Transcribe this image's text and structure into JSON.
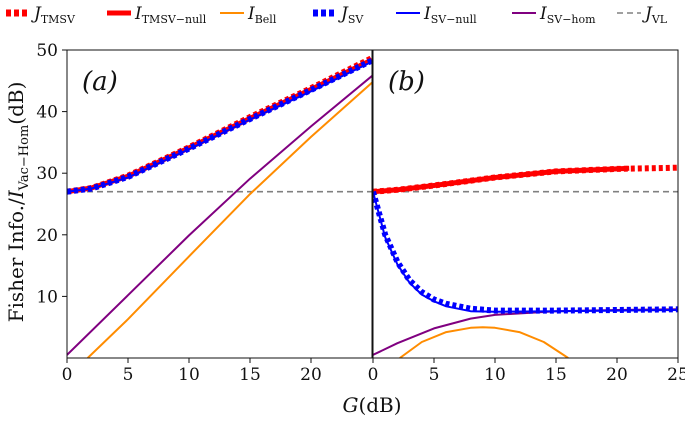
{
  "chart_data": {
    "type": "line",
    "xlabel": "G(dB)",
    "ylabel": "Fisher Info./I_Vac−Hom(dB)",
    "ylabel_parts": {
      "pre": "Fisher Info./",
      "sym": "I",
      "sub": "Vac−Hom",
      "post": "(dB)"
    },
    "x_ticks": [
      0,
      5,
      10,
      15,
      20,
      25
    ],
    "y_ticks": [
      10,
      20,
      30,
      40,
      50
    ],
    "xlim": [
      0,
      25
    ],
    "ylim": [
      0,
      50
    ],
    "legend": [
      {
        "key": "J_TMSV",
        "symbol": "J",
        "sub": "TMSV",
        "color": "#ff0000",
        "style": "dotted-thick"
      },
      {
        "key": "I_TMSV-null",
        "symbol": "I",
        "sub": "TMSV−null",
        "color": "#ff0000",
        "style": "solid-thick"
      },
      {
        "key": "I_Bell",
        "symbol": "I",
        "sub": "Bell",
        "color": "#ff8c00",
        "style": "solid"
      },
      {
        "key": "J_SV",
        "symbol": "J",
        "sub": "SV",
        "color": "#0000ff",
        "style": "dotted-thick"
      },
      {
        "key": "I_SV-null",
        "symbol": "I",
        "sub": "SV−null",
        "color": "#0000ff",
        "style": "solid"
      },
      {
        "key": "I_SV-hom",
        "symbol": "I",
        "sub": "SV−hom",
        "color": "#800080",
        "style": "solid"
      },
      {
        "key": "J_VL",
        "symbol": "J",
        "sub": "VL",
        "color": "#808080",
        "style": "dashed"
      }
    ],
    "panels": [
      {
        "label": "(a)",
        "series": [
          {
            "key": "J_TMSV",
            "x": [
              0,
              2,
              5,
              10,
              15,
              20,
              25
            ],
            "y": [
              27,
              27.6,
              29.6,
              34.2,
              39.1,
              43.8,
              48.7
            ]
          },
          {
            "key": "I_TMSV-null",
            "x": [
              0,
              2,
              5,
              10,
              15,
              20,
              25
            ],
            "y": [
              27,
              27.6,
              29.5,
              34.1,
              38.9,
              43.6,
              48.4
            ]
          },
          {
            "key": "J_SV",
            "x": [
              0,
              2,
              5,
              10,
              15,
              20,
              25
            ],
            "y": [
              27,
              27.5,
              29.4,
              34.0,
              38.8,
              43.5,
              48.3
            ]
          },
          {
            "key": "I_SV-null",
            "x": [
              0,
              2,
              5,
              10,
              15,
              20,
              25
            ],
            "y": [
              27,
              27.5,
              29.3,
              33.9,
              38.7,
              43.3,
              48.1
            ]
          },
          {
            "key": "I_SV-hom",
            "x": [
              0,
              5,
              10,
              15,
              20,
              25
            ],
            "y": [
              0.5,
              10.2,
              19.9,
              29.1,
              37.6,
              45.8
            ]
          },
          {
            "key": "I_Bell",
            "x": [
              1.7,
              5,
              10,
              15,
              20,
              25
            ],
            "y": [
              0,
              6.3,
              16.5,
              26.6,
              35.9,
              44.7
            ]
          },
          {
            "key": "J_VL",
            "x": [
              0,
              25
            ],
            "y": [
              27,
              27
            ]
          }
        ]
      },
      {
        "label": "(b)",
        "series": [
          {
            "key": "J_TMSV",
            "x": [
              0,
              2,
              5,
              10,
              15,
              20,
              25
            ],
            "y": [
              27,
              27.3,
              28.0,
              29.3,
              30.3,
              30.7,
              30.9
            ]
          },
          {
            "key": "I_TMSV-null",
            "x": [
              0,
              2,
              5,
              10,
              15,
              20,
              21
            ],
            "y": [
              27,
              27.3,
              28.0,
              29.3,
              30.3,
              30.7,
              30.8
            ]
          },
          {
            "key": "J_SV",
            "x": [
              0,
              1,
              2,
              3,
              4,
              5,
              6,
              8,
              10,
              15,
              20,
              25
            ],
            "y": [
              27,
              20,
              15.6,
              12.6,
              10.7,
              9.5,
              8.8,
              8.0,
              7.7,
              7.7,
              7.8,
              7.9
            ]
          },
          {
            "key": "I_SV-null",
            "x": [
              0,
              1,
              2,
              3,
              4,
              5,
              6,
              8,
              10,
              15,
              20,
              25
            ],
            "y": [
              27,
              19.6,
              15.2,
              12.2,
              10.3,
              9.2,
              8.4,
              7.6,
              7.5,
              7.6,
              7.7,
              7.8
            ]
          },
          {
            "key": "I_SV-hom",
            "x": [
              0,
              2,
              5,
              8,
              10,
              15,
              20,
              25
            ],
            "y": [
              0.5,
              2.4,
              4.8,
              6.4,
              7.0,
              7.6,
              7.8,
              7.9
            ]
          },
          {
            "key": "I_Bell",
            "x": [
              2.2,
              4,
              6,
              8,
              9,
              10,
              12,
              14,
              16
            ],
            "y": [
              0,
              2.6,
              4.2,
              4.9,
              5.0,
              4.9,
              4.2,
              2.6,
              0
            ]
          },
          {
            "key": "J_VL",
            "x": [
              0,
              25
            ],
            "y": [
              27,
              27
            ]
          }
        ]
      }
    ]
  }
}
